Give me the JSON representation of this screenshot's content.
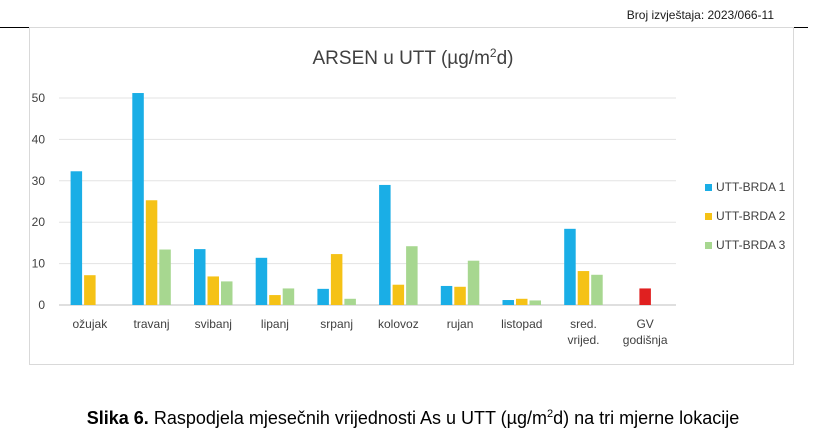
{
  "header": {
    "report_number": "Broj izvještaja: 2023/066-11"
  },
  "caption": {
    "label": "Slika 6.",
    "text_before": " Raspodjela mjesečnih vrijednosti As u UTT (µg/m",
    "sup": "2",
    "text_after": "d) na tri mjerne lokacije"
  },
  "chart_data": {
    "type": "bar",
    "title": "ARSEN u UTT (µg/m²d)",
    "title_base": "ARSEN u UTT (µg/m",
    "title_sup": "2",
    "title_end": "d)",
    "xlabel": "",
    "ylabel": "",
    "ylim": [
      0,
      50
    ],
    "yticks": [
      0,
      10,
      20,
      30,
      40,
      50
    ],
    "grid": true,
    "legend_position": "right",
    "categories": [
      [
        "ožujak"
      ],
      [
        "travanj"
      ],
      [
        "svibanj"
      ],
      [
        "lipanj"
      ],
      [
        "srpanj"
      ],
      [
        "kolovoz"
      ],
      [
        "rujan"
      ],
      [
        "listopad"
      ],
      [
        "sred.",
        "vrijed."
      ],
      [
        "GV",
        "godišnja"
      ]
    ],
    "series": [
      {
        "name": "UTT-BRDA 1",
        "color": "#1aaee6",
        "values": [
          32.3,
          null,
          13.5,
          11.4,
          3.9,
          29.0,
          4.6,
          1.2,
          18.4,
          null
        ]
      },
      {
        "name": "UTT-BRDA 2",
        "color": "#f5c216",
        "values": [
          7.2,
          25.3,
          6.9,
          2.4,
          12.3,
          4.9,
          4.4,
          1.5,
          8.2,
          null
        ]
      },
      {
        "name": "UTT-BRDA 3",
        "color": "#a7d790",
        "values": [
          null,
          13.4,
          5.7,
          4.0,
          1.5,
          14.2,
          10.7,
          1.1,
          7.3,
          null
        ]
      }
    ],
    "extra_bars": [
      {
        "category_index": 1,
        "series_index": 0,
        "value": 51.2,
        "color": "#1aaee6"
      }
    ],
    "limit_bar": {
      "category_index": 9,
      "value": 4.0,
      "color": "#e02020"
    }
  }
}
